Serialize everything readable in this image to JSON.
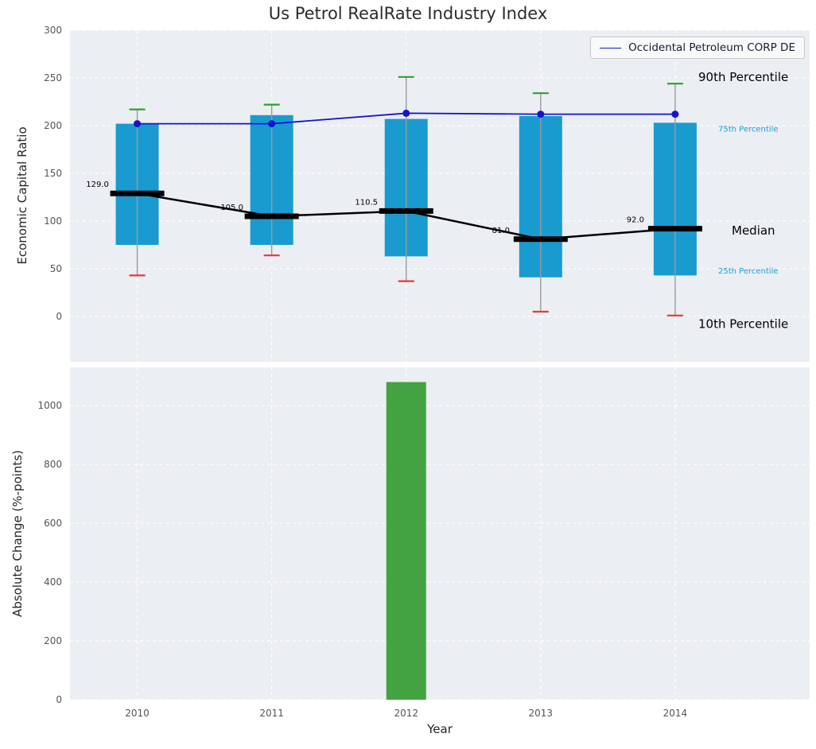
{
  "chart_data": [
    {
      "type": "boxplot",
      "title": "Us Petrol RealRate Industry Index",
      "ylabel": "Economic Capital Ratio",
      "x": [
        2010,
        2011,
        2012,
        2013,
        2014
      ],
      "xlim": [
        2009.5,
        2015.0
      ],
      "ylim": [
        -47.5,
        300
      ],
      "yticks": [
        0,
        50,
        100,
        150,
        200,
        250,
        300
      ],
      "grid": "dashed-white",
      "percentiles": {
        "p90": [
          217,
          222,
          251,
          234,
          244
        ],
        "p75": [
          202,
          211,
          207,
          210,
          203
        ],
        "median": [
          129,
          105,
          110.5,
          81,
          92
        ],
        "p25": [
          75,
          75,
          63,
          41,
          43
        ],
        "p10": [
          43,
          64,
          37,
          5,
          1
        ]
      },
      "median_labels": [
        "129.0",
        "105.0",
        "110.5",
        "81.0",
        "92.0"
      ],
      "company_series": {
        "name": "Occidental Petroleum CORP DE",
        "values": [
          202,
          202,
          213,
          212,
          212
        ]
      },
      "legend": {
        "position": "upper-right",
        "entries": [
          "Occidental Petroleum CORP DE"
        ]
      },
      "right_labels": [
        {
          "text": "90th Percentile",
          "value": 251,
          "style": "large-black"
        },
        {
          "text": "75th Percentile",
          "value": 198,
          "style": "small-blue"
        },
        {
          "text": "Median",
          "value": 90,
          "style": "large-black"
        },
        {
          "text": "25th Percentile",
          "value": 49,
          "style": "small-blue"
        },
        {
          "text": "10th Percentile",
          "value": -8,
          "style": "large-black"
        }
      ]
    },
    {
      "type": "bar",
      "ylabel": "Absolute Change (%-points)",
      "xlabel": "Year",
      "categories": [
        2010,
        2011,
        2012,
        2013,
        2014
      ],
      "values": [
        0,
        0,
        1080,
        0,
        0
      ],
      "yticks": [
        0,
        200,
        400,
        600,
        800,
        1000
      ],
      "ylim": [
        0,
        1130
      ],
      "bar_color": "#43a340"
    }
  ],
  "colors": {
    "axes_background": "#ebeef2",
    "grid": "#ffffff",
    "box_fill": "#199bd0",
    "p90_cap": "#2ca02c",
    "p10_cap": "#e53935",
    "whisker": "#9b9b9b",
    "median": "#000000",
    "company_line": "#1414cc",
    "change_bar": "#43a340",
    "tick_text": "#555555",
    "annotation_blue": "#1f9ed1",
    "title_text": "#2b2b2b"
  }
}
